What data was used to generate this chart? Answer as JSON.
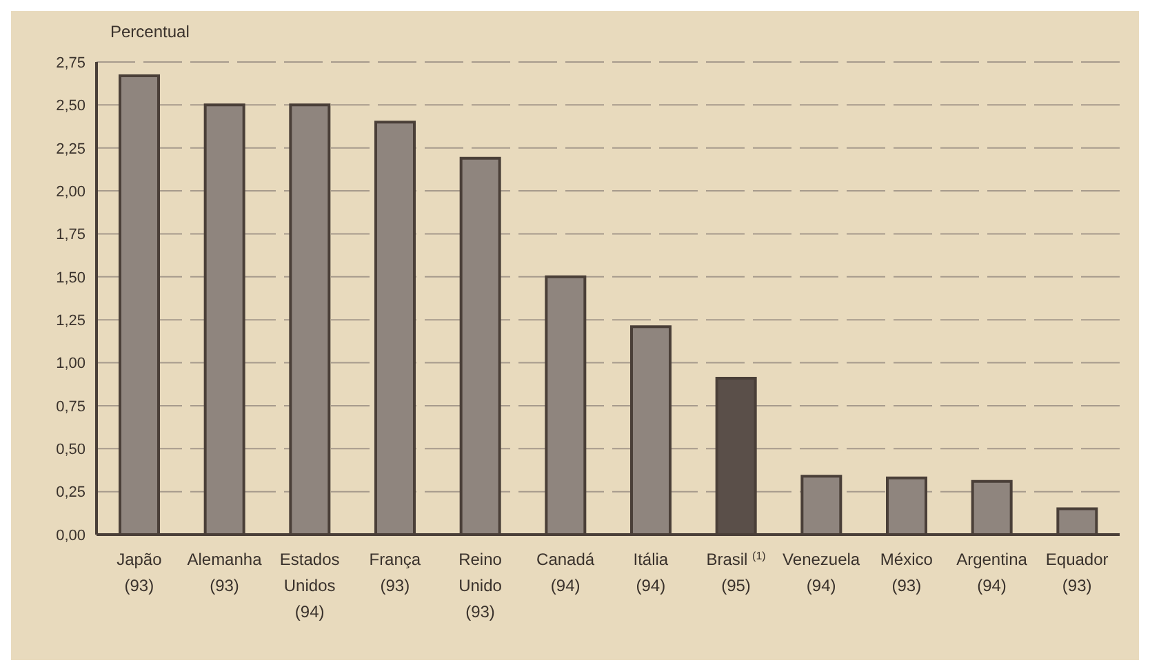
{
  "chart_data": {
    "type": "bar",
    "ylabel": "Percentual",
    "categories": [
      "Japão\n(93)",
      "Alemanha\n(93)",
      "Estados\nUnidos\n(94)",
      "França\n(93)",
      "Reino\nUnido\n(93)",
      "Canadá\n(94)",
      "Itália\n(94)",
      "Brasil $^{(1)}$\n(95)",
      "Venezuela\n(94)",
      "México\n(93)",
      "Argentina\n(94)",
      "Equador\n(93)"
    ],
    "values": [
      2.67,
      2.5,
      2.5,
      2.4,
      2.19,
      1.5,
      1.21,
      0.91,
      0.34,
      0.33,
      0.31,
      0.15
    ],
    "colors": [
      "#8f857e",
      "#8f857e",
      "#8f857e",
      "#8f857e",
      "#8f857e",
      "#8f857e",
      "#8f857e",
      "#5a4f49",
      "#8f857e",
      "#8f857e",
      "#8f857e",
      "#8f857e"
    ],
    "ylim": [
      0,
      2.75
    ],
    "yticks": [
      {
        "value": 0,
        "label": "0,00"
      },
      {
        "value": 0.25,
        "label": "0,25"
      },
      {
        "value": 0.5,
        "label": "0,50"
      },
      {
        "value": 0.75,
        "label": "0,75"
      },
      {
        "value": 1,
        "label": "1,00"
      },
      {
        "value": 1.25,
        "label": "1,25"
      },
      {
        "value": 1.5,
        "label": "1,50"
      },
      {
        "value": 1.75,
        "label": "1,75"
      },
      {
        "value": 2,
        "label": "2,00"
      },
      {
        "value": 2.25,
        "label": "2,25"
      },
      {
        "value": 2.5,
        "label": "2,50"
      },
      {
        "value": 2.75,
        "label": "2,75"
      }
    ],
    "grid": "y"
  }
}
